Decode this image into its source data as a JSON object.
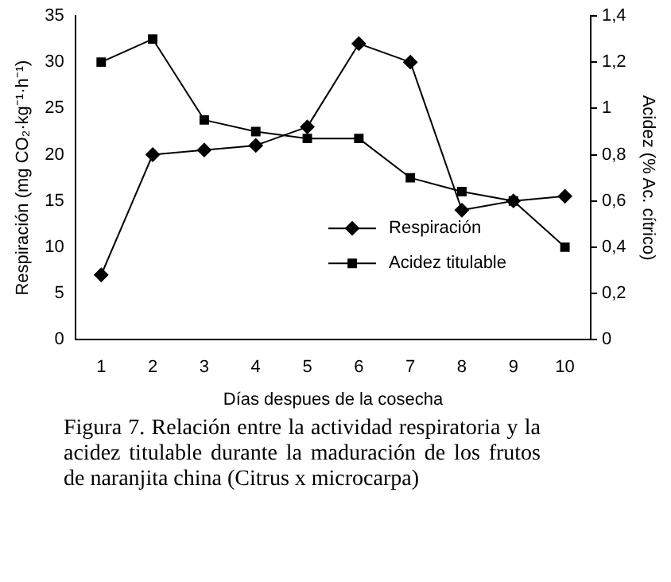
{
  "chart_data": {
    "type": "line",
    "xlabel": "Días despues de la cosecha",
    "ylabel": "Respiración (mg CO₂·kg⁻¹·h⁻¹)",
    "y2label": "Acidez (% Ac. cítrico)",
    "categories": [
      "1",
      "2",
      "3",
      "4",
      "5",
      "6",
      "7",
      "8",
      "9",
      "10"
    ],
    "series": [
      {
        "name": "Respiración",
        "color": "#000000",
        "marker": "diamond",
        "values": [
          7,
          20,
          20.5,
          21,
          23,
          32,
          30,
          14,
          15,
          15.5
        ]
      },
      {
        "name": "Acidez titulable",
        "color": "#000000",
        "marker": "square",
        "axis": "y2",
        "values": [
          1.2,
          1.3,
          0.95,
          0.9,
          0.87,
          0.87,
          0.7,
          0.64,
          0.6,
          0.4
        ]
      }
    ],
    "ylim": [
      0,
      35
    ],
    "yticks": [
      0,
      5,
      10,
      15,
      20,
      25,
      30,
      35
    ],
    "y2lim": [
      0,
      1.4
    ],
    "y2ticks": [
      0,
      {
        "value": 0.2,
        "label": "0,2"
      },
      {
        "value": 0.4,
        "label": "0,4"
      },
      {
        "value": 0.6,
        "label": "0,6"
      },
      {
        "value": 0.8,
        "label": "0,8"
      },
      1,
      {
        "value": 1.2,
        "label": "1,2"
      },
      {
        "value": 1.4,
        "label": "1,4"
      }
    ],
    "grid": false,
    "legend": "bottom right",
    "line_style": "solid",
    "annotations": [
      "Figura 7.  Relación entre la actividad respiratoria y la acidez titulable durante la maduración de los frutos de naranjita china (Citrus x microcarpa)"
    ]
  }
}
